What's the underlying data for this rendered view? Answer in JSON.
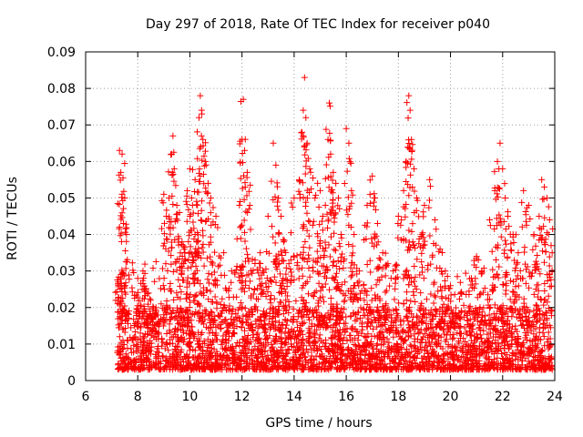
{
  "chart_data": {
    "type": "scatter",
    "title": "Day 297 of 2018, Rate Of TEC Index for receiver p040",
    "xlabel": "GPS time / hours",
    "ylabel": "ROTI / TECUs",
    "xlim": [
      6,
      24
    ],
    "ylim": [
      0,
      0.09
    ],
    "xticks": [
      6,
      8,
      10,
      12,
      14,
      16,
      18,
      20,
      22,
      24
    ],
    "yticks": [
      0,
      0.01,
      0.02,
      0.03,
      0.04,
      0.05,
      0.06,
      0.07,
      0.08,
      0.09
    ],
    "xtick_labels": [
      "6",
      "8",
      "10",
      "12",
      "14",
      "16",
      "18",
      "20",
      "22",
      "24"
    ],
    "ytick_labels": [
      "0",
      "0.01",
      "0.02",
      "0.03",
      "0.04",
      "0.05",
      "0.06",
      "0.07",
      "0.08",
      "0.09"
    ],
    "grid": true,
    "marker": "+",
    "color": "#ff0000",
    "data_start_hour": 7.2,
    "baseline_range": [
      0.003,
      0.02
    ],
    "points": [
      [
        7.3,
        0.063
      ],
      [
        7.35,
        0.057
      ],
      [
        7.4,
        0.051
      ],
      [
        7.45,
        0.043
      ],
      [
        7.3,
        0.042
      ],
      [
        7.5,
        0.05
      ],
      [
        7.25,
        0.027
      ],
      [
        7.4,
        0.062
      ],
      [
        8.0,
        0.028
      ],
      [
        8.2,
        0.03
      ],
      [
        8.3,
        0.025
      ],
      [
        8.5,
        0.022
      ],
      [
        8.7,
        0.02
      ],
      [
        9.0,
        0.051
      ],
      [
        9.1,
        0.045
      ],
      [
        9.2,
        0.05
      ],
      [
        9.3,
        0.062
      ],
      [
        9.35,
        0.067
      ],
      [
        9.4,
        0.058
      ],
      [
        9.5,
        0.048
      ],
      [
        9.6,
        0.046
      ],
      [
        9.7,
        0.038
      ],
      [
        9.8,
        0.035
      ],
      [
        9.9,
        0.052
      ],
      [
        10.0,
        0.045
      ],
      [
        10.1,
        0.048
      ],
      [
        10.2,
        0.04
      ],
      [
        10.3,
        0.038
      ],
      [
        10.35,
        0.072
      ],
      [
        10.4,
        0.078
      ],
      [
        10.45,
        0.074
      ],
      [
        10.5,
        0.066
      ],
      [
        10.6,
        0.06
      ],
      [
        10.7,
        0.054
      ],
      [
        10.8,
        0.05
      ],
      [
        10.0,
        0.058
      ],
      [
        10.2,
        0.055
      ],
      [
        11.0,
        0.045
      ],
      [
        11.3,
        0.035
      ],
      [
        11.6,
        0.03
      ],
      [
        11.9,
        0.048
      ],
      [
        12.0,
        0.066
      ],
      [
        12.05,
        0.077
      ],
      [
        12.1,
        0.063
      ],
      [
        12.2,
        0.057
      ],
      [
        12.3,
        0.048
      ],
      [
        12.5,
        0.033
      ],
      [
        12.7,
        0.035
      ],
      [
        12.8,
        0.03
      ],
      [
        13.0,
        0.045
      ],
      [
        13.2,
        0.065
      ],
      [
        13.3,
        0.059
      ],
      [
        13.4,
        0.05
      ],
      [
        13.5,
        0.045
      ],
      [
        13.6,
        0.038
      ],
      [
        13.8,
        0.032
      ],
      [
        14.0,
        0.05
      ],
      [
        14.2,
        0.055
      ],
      [
        14.3,
        0.068
      ],
      [
        14.35,
        0.074
      ],
      [
        14.4,
        0.083
      ],
      [
        14.45,
        0.072
      ],
      [
        14.5,
        0.065
      ],
      [
        14.6,
        0.058
      ],
      [
        14.8,
        0.05
      ],
      [
        14.9,
        0.054
      ],
      [
        15.0,
        0.052
      ],
      [
        15.1,
        0.045
      ],
      [
        15.2,
        0.048
      ],
      [
        15.3,
        0.066
      ],
      [
        15.35,
        0.076
      ],
      [
        15.4,
        0.062
      ],
      [
        15.5,
        0.057
      ],
      [
        15.6,
        0.054
      ],
      [
        15.7,
        0.05
      ],
      [
        15.8,
        0.04
      ],
      [
        16.0,
        0.069
      ],
      [
        16.1,
        0.065
      ],
      [
        16.2,
        0.052
      ],
      [
        16.3,
        0.04
      ],
      [
        16.5,
        0.03
      ],
      [
        16.8,
        0.048
      ],
      [
        17.0,
        0.056
      ],
      [
        17.1,
        0.05
      ],
      [
        17.2,
        0.043
      ],
      [
        17.4,
        0.035
      ],
      [
        17.6,
        0.032
      ],
      [
        17.8,
        0.03
      ],
      [
        18.0,
        0.045
      ],
      [
        18.2,
        0.052
      ],
      [
        18.3,
        0.06
      ],
      [
        18.4,
        0.078
      ],
      [
        18.45,
        0.074
      ],
      [
        18.5,
        0.066
      ],
      [
        18.6,
        0.058
      ],
      [
        18.7,
        0.05
      ],
      [
        18.9,
        0.04
      ],
      [
        19.0,
        0.048
      ],
      [
        19.2,
        0.055
      ],
      [
        19.4,
        0.044
      ],
      [
        19.6,
        0.036
      ],
      [
        19.8,
        0.03
      ],
      [
        20.0,
        0.026
      ],
      [
        20.4,
        0.024
      ],
      [
        20.8,
        0.028
      ],
      [
        21.0,
        0.034
      ],
      [
        21.2,
        0.03
      ],
      [
        21.5,
        0.044
      ],
      [
        21.7,
        0.052
      ],
      [
        21.8,
        0.06
      ],
      [
        21.9,
        0.065
      ],
      [
        22.0,
        0.058
      ],
      [
        22.1,
        0.05
      ],
      [
        22.2,
        0.045
      ],
      [
        22.4,
        0.04
      ],
      [
        22.6,
        0.035
      ],
      [
        22.8,
        0.052
      ],
      [
        23.0,
        0.048
      ],
      [
        23.2,
        0.04
      ],
      [
        23.4,
        0.045
      ],
      [
        23.5,
        0.055
      ],
      [
        23.6,
        0.053
      ],
      [
        23.7,
        0.05
      ],
      [
        23.8,
        0.044
      ],
      [
        23.9,
        0.035
      ]
    ]
  }
}
